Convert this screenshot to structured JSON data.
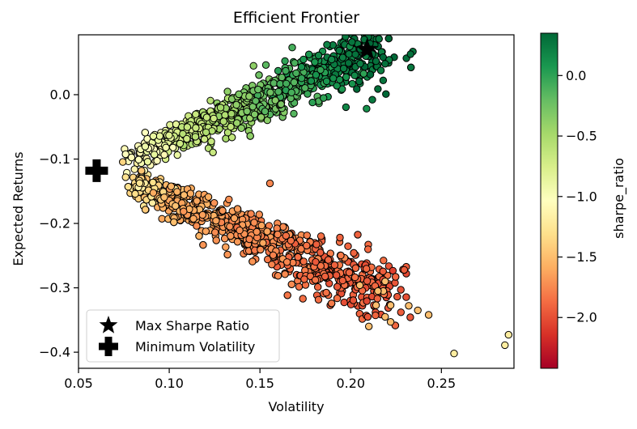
{
  "chart_data": {
    "type": "scatter",
    "title": "Efficient Frontier",
    "xlabel": "Volatility",
    "ylabel": "Expected Returns",
    "xlim": [
      0.05,
      0.29
    ],
    "ylim": [
      -0.425,
      0.093
    ],
    "xticks": [
      0.05,
      0.1,
      0.15,
      0.2,
      0.25
    ],
    "xtick_labels": [
      "0.05",
      "0.10",
      "0.15",
      "0.20",
      "0.25"
    ],
    "yticks": [
      0.0,
      -0.1,
      -0.2,
      -0.3,
      -0.4
    ],
    "ytick_labels": [
      "0.0",
      "−0.1",
      "−0.2",
      "−0.3",
      "−0.4"
    ],
    "grid": false,
    "colorbar": {
      "label": "sharpe_ratio",
      "colormap": "RdYlGn",
      "range": [
        -2.42,
        0.35
      ],
      "ticks": [
        0.0,
        -0.5,
        -1.0,
        -1.5,
        -2.0
      ],
      "tick_labels": [
        "0.0",
        "−0.5",
        "−1.0",
        "−1.5",
        "−2.0"
      ],
      "stops": [
        "#a50026",
        "#d73027",
        "#f46d43",
        "#fdae61",
        "#fee08b",
        "#ffffbf",
        "#d9ef8b",
        "#a6d96a",
        "#66bd63",
        "#1a9850",
        "#006837"
      ]
    },
    "markers": [
      {
        "name": "Max Sharpe Ratio",
        "symbol": "star",
        "x": 0.209,
        "y": 0.07
      },
      {
        "name": "Minimum Volatility",
        "symbol": "plus",
        "x": 0.06,
        "y": -0.118
      }
    ],
    "legend": {
      "placement": "lower-left",
      "entries": [
        "Max Sharpe Ratio",
        "Minimum Volatility"
      ]
    },
    "outlier_points": [
      [
        0.257,
        -0.402
      ],
      [
        0.285,
        -0.389
      ],
      [
        0.287,
        -0.373
      ],
      [
        0.233,
        0.063
      ],
      [
        0.243,
        -0.342
      ],
      [
        0.237,
        -0.335
      ],
      [
        0.232,
        -0.328
      ],
      [
        0.222,
        -0.353
      ],
      [
        0.219,
        -0.345
      ],
      [
        0.222,
        -0.327
      ],
      [
        0.219,
        0.048
      ],
      [
        0.214,
        0.052
      ],
      [
        0.212,
        0.063
      ],
      [
        0.205,
        -0.296
      ],
      [
        0.218,
        -0.305
      ],
      [
        0.214,
        -0.327
      ],
      [
        0.21,
        -0.36
      ],
      [
        0.215,
        -0.305
      ],
      [
        0.219,
        -0.29
      ]
    ],
    "cloud": {
      "upper_branch_sharpe": [
        -1.05,
        0.32
      ],
      "lower_branch_sharpe": [
        -2.4,
        -1.2
      ],
      "points": 2000
    }
  }
}
